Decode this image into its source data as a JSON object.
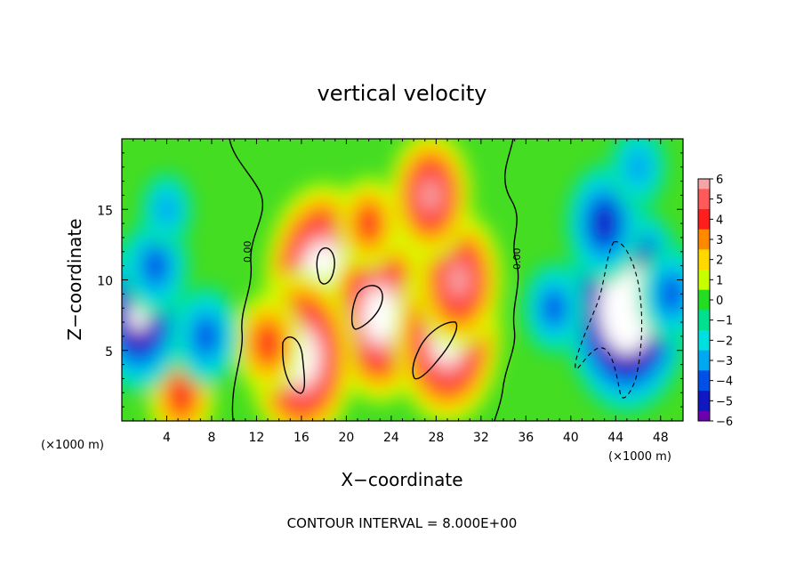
{
  "chart_data": {
    "type": "heatmap",
    "title": "vertical velocity",
    "xlabel": "X−coordinate",
    "ylabel": "Z−coordinate",
    "x_unit": "(×1000 m)",
    "y_unit": "(×1000 m)",
    "xlim": [
      0,
      50
    ],
    "ylim": [
      0,
      20
    ],
    "x_ticks": [
      4,
      8,
      12,
      16,
      20,
      24,
      28,
      32,
      36,
      40,
      44,
      48
    ],
    "x_tick_labels": [
      "4",
      "8",
      "12",
      "16",
      "20",
      "24",
      "28",
      "32",
      "36",
      "40",
      "44",
      "48"
    ],
    "y_ticks": [
      5,
      10,
      15
    ],
    "y_tick_labels": [
      "5",
      "10",
      "15"
    ],
    "colorbar": {
      "min": -6,
      "max": 6,
      "levels": [
        6,
        5,
        4,
        3,
        2,
        1,
        0,
        -1,
        -2,
        -3,
        -4,
        -5,
        -6
      ],
      "labels": [
        "6",
        "5",
        "4",
        "3",
        "2",
        "1",
        "0",
        "−1",
        "−2",
        "−3",
        "−4",
        "−5",
        "−6"
      ]
    },
    "contour_labels": [
      "0.00",
      "0.00"
    ],
    "footer": "CONTOUR INTERVAL = 8.000E+00",
    "features": [
      {
        "x": 18,
        "z": 10,
        "value": 9
      },
      {
        "x": 23,
        "z": 7.5,
        "value": 8
      },
      {
        "x": 16,
        "z": 4.5,
        "value": 8
      },
      {
        "x": 29,
        "z": 6,
        "value": 8
      },
      {
        "x": 30,
        "z": 10,
        "value": 6
      },
      {
        "x": 27.5,
        "z": 16,
        "value": 5.5
      },
      {
        "x": 22,
        "z": 14,
        "value": 3.5
      },
      {
        "x": 13,
        "z": 5.5,
        "value": 4
      },
      {
        "x": 5.3,
        "z": 1.8,
        "value": 4
      },
      {
        "x": 45,
        "z": 8,
        "value": -10
      },
      {
        "x": 43,
        "z": 14,
        "value": -5
      },
      {
        "x": 1.5,
        "z": 7.5,
        "value": -7
      },
      {
        "x": 3,
        "z": 11,
        "value": -4
      },
      {
        "x": 7.5,
        "z": 6,
        "value": -4
      },
      {
        "x": 38.5,
        "z": 8,
        "value": -3.5
      },
      {
        "x": 4,
        "z": 15,
        "value": -2.5
      },
      {
        "x": 46,
        "z": 18,
        "value": -3
      },
      {
        "x": 49,
        "z": 9,
        "value": -4
      }
    ]
  }
}
